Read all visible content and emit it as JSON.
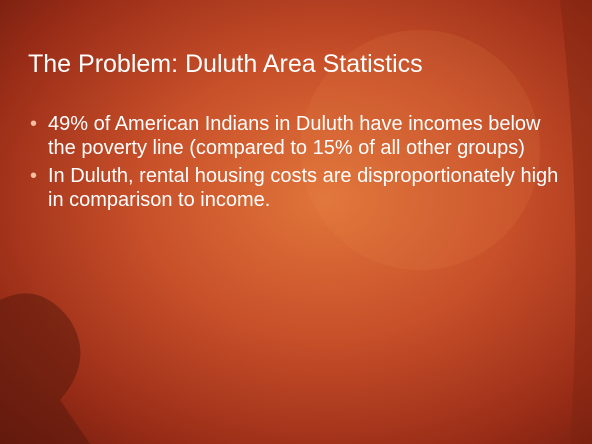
{
  "title": "The Problem: Duluth Area Statistics",
  "bullets": [
    "49% of American Indians in Duluth have incomes below the poverty line (compared to 15% of all other groups)",
    "In Duluth, rental housing costs are disproportionately high in comparison to income."
  ]
}
